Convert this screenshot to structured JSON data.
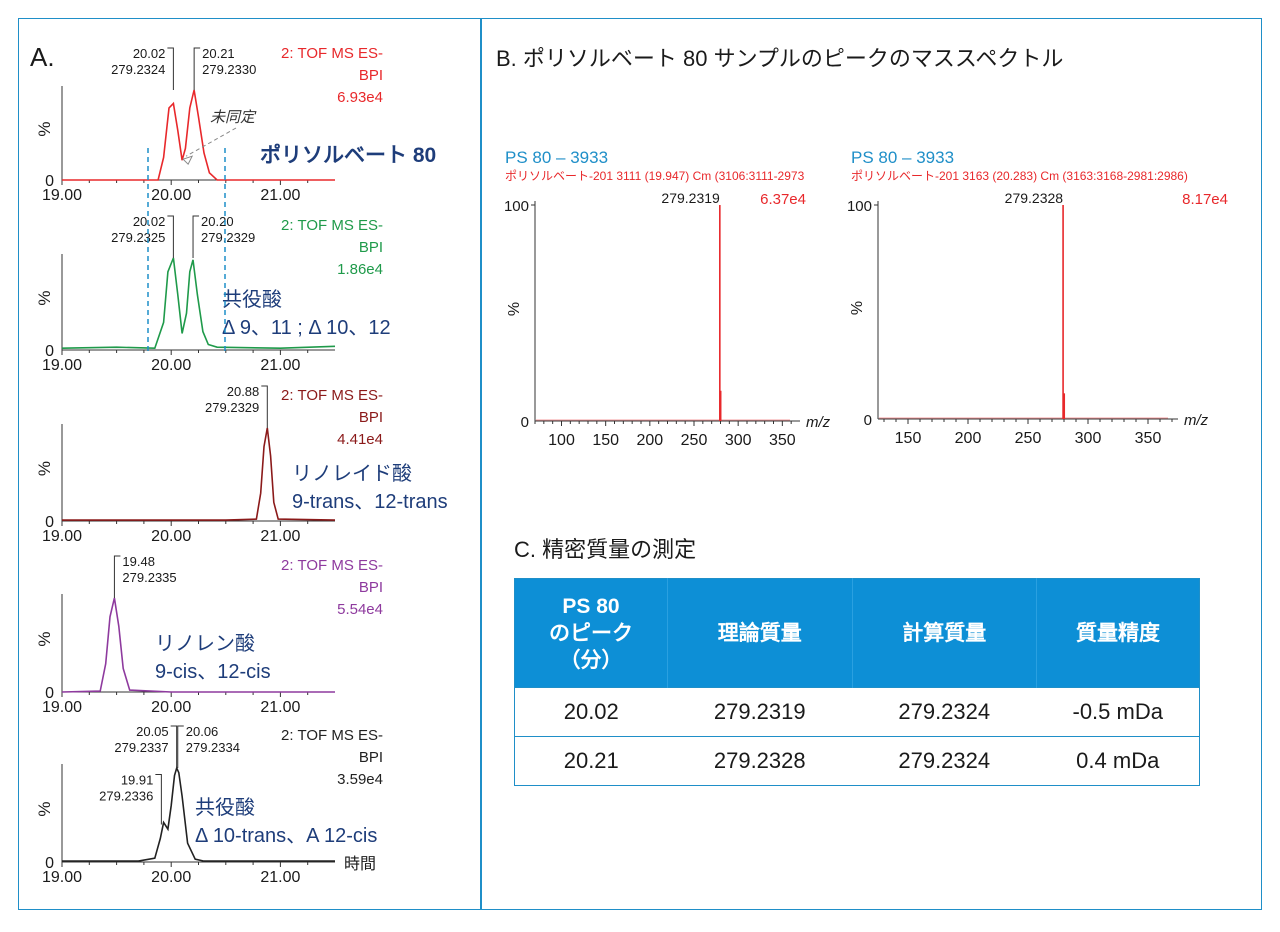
{
  "panel_a_label": "A.",
  "panel_b_title": "B. ポリソルベート 80 サンプルのピークのマススペクトル",
  "panel_c_title": "C. 精密質量の測定",
  "time_unit": "時間",
  "mz_label": "m/z",
  "pct_label": "%",
  "colors": {
    "red": "#e8282b",
    "green": "#1f9a4a",
    "darkred": "#8b1a1a",
    "purple": "#8e3a9e",
    "black": "#222222",
    "navy": "#1e3d7a",
    "blue": "#1f8fc8",
    "tablehead": "#0d8fd6"
  },
  "chart_data": [
    {
      "type": "line",
      "id": "chrom1",
      "color": "#e8282b",
      "header": [
        "2: TOF MS ES-",
        "BPI",
        "6.93e4"
      ],
      "xlim": [
        19.0,
        21.5
      ],
      "xticks": [
        "19.00",
        "20.00",
        "21.00"
      ],
      "ylim": [
        0,
        100
      ],
      "x": [
        19.0,
        19.5,
        19.88,
        19.93,
        19.98,
        20.02,
        20.06,
        20.1,
        20.13,
        20.17,
        20.21,
        20.25,
        20.3,
        20.35,
        20.42,
        21.0,
        21.5
      ],
      "y": [
        0,
        0,
        0,
        25,
        80,
        85,
        55,
        22,
        35,
        80,
        100,
        70,
        30,
        8,
        0,
        0,
        0
      ],
      "peaks": [
        {
          "x": 20.02,
          "rt": "20.02",
          "mz": "279.2324"
        },
        {
          "x": 20.21,
          "rt": "20.21",
          "mz": "279.2330"
        }
      ],
      "annotation_text": "未同定",
      "compound": [
        "ポリソルベート 80"
      ]
    },
    {
      "type": "line",
      "id": "chrom2",
      "color": "#1f9a4a",
      "header": [
        "2: TOF MS ES-",
        "BPI",
        "1.86e4"
      ],
      "xlim": [
        19.0,
        21.5
      ],
      "xticks": [
        "19.00",
        "20.00",
        "21.00"
      ],
      "ylim": [
        0,
        100
      ],
      "x": [
        19.0,
        19.5,
        19.85,
        19.93,
        19.97,
        20.02,
        20.06,
        20.1,
        20.14,
        20.17,
        20.2,
        20.24,
        20.29,
        20.34,
        20.42,
        21.0,
        21.5
      ],
      "y": [
        2,
        3,
        2,
        30,
        85,
        100,
        60,
        18,
        40,
        85,
        98,
        60,
        20,
        6,
        3,
        2,
        4
      ],
      "peaks": [
        {
          "x": 20.02,
          "rt": "20.02",
          "mz": "279.2325"
        },
        {
          "x": 20.2,
          "rt": "20.20",
          "mz": "279.2329"
        }
      ],
      "compound": [
        "共役酸",
        "Δ 9、11 ; Δ 10、12"
      ]
    },
    {
      "type": "line",
      "id": "chrom3",
      "color": "#8b1a1a",
      "header": [
        "2: TOF MS ES-",
        "BPI",
        "4.41e4"
      ],
      "xlim": [
        19.0,
        21.5
      ],
      "xticks": [
        "19.00",
        "20.00",
        "21.00"
      ],
      "ylim": [
        0,
        100
      ],
      "x": [
        19.0,
        20.5,
        20.78,
        20.82,
        20.85,
        20.88,
        20.91,
        20.94,
        20.98,
        21.5
      ],
      "y": [
        1,
        1,
        2,
        30,
        80,
        100,
        70,
        20,
        2,
        1
      ],
      "peaks": [
        {
          "x": 20.88,
          "rt": "20.88",
          "mz": "279.2329"
        }
      ],
      "compound": [
        "リノレイド酸",
        "9-trans、12-trans"
      ]
    },
    {
      "type": "line",
      "id": "chrom4",
      "color": "#8e3a9e",
      "header": [
        "2: TOF MS ES-",
        "BPI",
        "5.54e4"
      ],
      "xlim": [
        19.0,
        21.5
      ],
      "xticks": [
        "19.00",
        "20.00",
        "21.00"
      ],
      "ylim": [
        0,
        100
      ],
      "x": [
        19.0,
        19.35,
        19.4,
        19.44,
        19.48,
        19.52,
        19.56,
        19.62,
        20.0,
        21.5
      ],
      "y": [
        0,
        1,
        30,
        80,
        100,
        70,
        25,
        2,
        0,
        0
      ],
      "peaks": [
        {
          "x": 19.48,
          "rt": "19.48",
          "mz": "279.2335"
        }
      ],
      "compound": [
        "リノレン酸",
        "9-cis、12-cis"
      ]
    },
    {
      "type": "line",
      "id": "chrom5",
      "color": "#222222",
      "header": [
        "2: TOF MS ES-",
        "BPI",
        "3.59e4"
      ],
      "xlim": [
        19.0,
        21.5
      ],
      "xticks": [
        "19.00",
        "20.00",
        "21.00"
      ],
      "ylim": [
        0,
        100
      ],
      "x": [
        19.0,
        19.7,
        19.85,
        19.9,
        19.93,
        19.97,
        20.0,
        20.03,
        20.05,
        20.07,
        20.1,
        20.15,
        20.22,
        20.3,
        21.5
      ],
      "y": [
        1,
        1,
        4,
        25,
        42,
        35,
        60,
        92,
        100,
        95,
        70,
        20,
        3,
        1,
        1
      ],
      "peaks": [
        {
          "x": 19.91,
          "rt": "19.91",
          "mz": "279.2336"
        },
        {
          "x": 20.05,
          "rt": "20.05",
          "mz": "279.2337"
        },
        {
          "x": 20.06,
          "rt": "20.06",
          "mz": "279.2334"
        }
      ],
      "compound": [
        "共役酸",
        "Δ 10-trans、A 12-cis"
      ]
    },
    {
      "type": "bar",
      "id": "spec1",
      "color": "#e8282b",
      "title": "PS 80 – 3933",
      "subtitle": "ポリソルベート-201 3111 (19.947) Cm (3106:3111-2973",
      "intensity": "6.37e4",
      "xlim": [
        70,
        370
      ],
      "xticks": [
        "100",
        "150",
        "200",
        "250",
        "300",
        "350"
      ],
      "ylim": [
        0,
        100
      ],
      "yticks": [
        "0",
        "100"
      ],
      "x": [
        279.2319,
        280.2
      ],
      "values": [
        100,
        14
      ],
      "peak_label": "279.2319"
    },
    {
      "type": "bar",
      "id": "spec2",
      "color": "#e8282b",
      "title": "PS 80 – 3933",
      "subtitle": "ポリソルベート-201 3163 (20.283) Cm (3163:3168-2981:2986)",
      "intensity": "8.17e4",
      "xlim": [
        125,
        375
      ],
      "xticks": [
        "150",
        "200",
        "250",
        "300",
        "350"
      ],
      "ylim": [
        0,
        100
      ],
      "yticks": [
        "0",
        "100"
      ],
      "x": [
        279.2328,
        280.2
      ],
      "values": [
        100,
        12
      ],
      "peak_label": "279.2328"
    },
    {
      "type": "table",
      "id": "accurate_mass",
      "columns": [
        "PS 80\nのピーク\n（分）",
        "理論質量",
        "計算質量",
        "質量精度"
      ],
      "rows": [
        [
          "20.02",
          "279.2319",
          "279.2324",
          "-0.5 mDa"
        ],
        [
          "20.21",
          "279.2328",
          "279.2324",
          "0.4 mDa"
        ]
      ]
    }
  ]
}
